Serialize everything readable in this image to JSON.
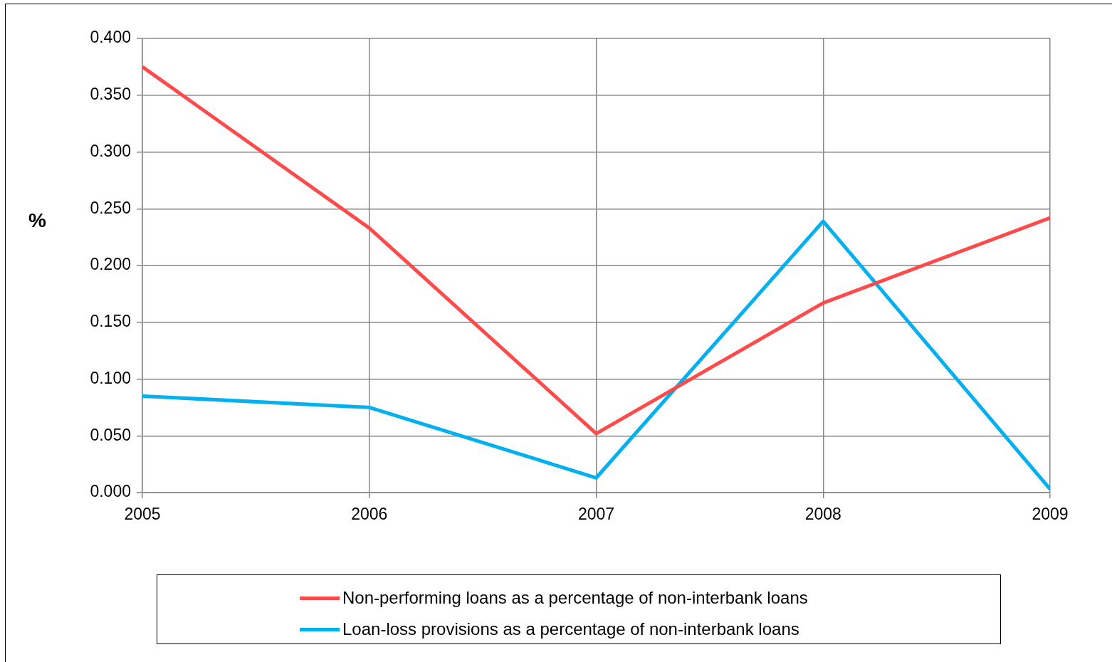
{
  "chart_data": {
    "type": "line",
    "ylabel": "%",
    "xlim": [
      2005,
      2009
    ],
    "xticks": [
      2005,
      2006,
      2007,
      2008,
      2009
    ],
    "x": [
      2005,
      2006,
      2007,
      2008,
      2009
    ],
    "ylim": [
      0,
      0.4
    ],
    "yticks": [
      {
        "value": 0,
        "label": "0.000"
      },
      {
        "value": 0.05,
        "label": "0.050"
      },
      {
        "value": 0.1,
        "label": "0.100"
      },
      {
        "value": 0.15,
        "label": "0.150"
      },
      {
        "value": 0.2,
        "label": "0.200"
      },
      {
        "value": 0.25,
        "label": "0.250"
      },
      {
        "value": 0.3,
        "label": "0.300"
      },
      {
        "value": 0.35,
        "label": "0.350"
      },
      {
        "value": 0.4,
        "label": "0.400"
      }
    ],
    "series": [
      {
        "name": "Non-performing loans as a percentage of non-interbank loans",
        "color": "#ff4b4b",
        "values": [
          0.375,
          0.233,
          0.052,
          0.167,
          0.242
        ]
      },
      {
        "name": "Loan-loss provisions as a percentage of non-interbank loans",
        "color": "#00b0f0",
        "values": [
          0.085,
          0.075,
          0.013,
          0.239,
          0.003
        ]
      }
    ],
    "grid": true,
    "legend": "bottom",
    "marker": "none",
    "line_style": "solid"
  }
}
